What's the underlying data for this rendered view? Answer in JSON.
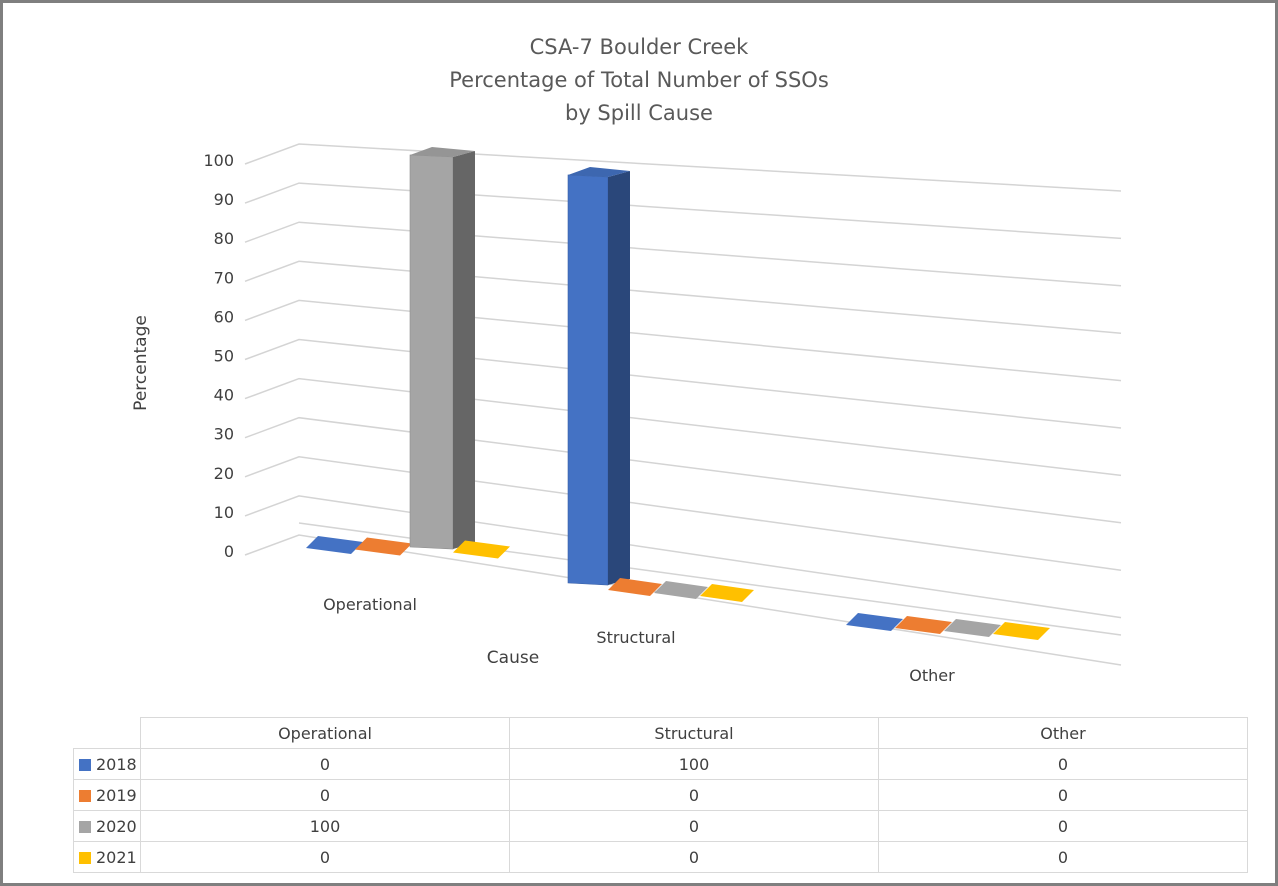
{
  "chart_data": {
    "type": "bar",
    "subtype": "3d-column",
    "title": [
      "CSA-7 Boulder Creek",
      "Percentage of Total Number of SSOs",
      "by Spill Cause"
    ],
    "categories": [
      "Operational",
      "Structural",
      "Other"
    ],
    "xlabel": "Cause",
    "ylabel": "Percentage",
    "ylim": [
      0,
      100
    ],
    "yticks": [
      0,
      10,
      20,
      30,
      40,
      50,
      60,
      70,
      80,
      90,
      100
    ],
    "grid": true,
    "legend": "data-table-bottom",
    "series": [
      {
        "name": "2018",
        "color": "#4472c4",
        "values": [
          0,
          100,
          0
        ]
      },
      {
        "name": "2019",
        "color": "#ed7d31",
        "values": [
          0,
          0,
          0
        ]
      },
      {
        "name": "2020",
        "color": "#a5a5a5",
        "values": [
          100,
          0,
          0
        ]
      },
      {
        "name": "2021",
        "color": "#ffc000",
        "values": [
          0,
          0,
          0
        ]
      }
    ]
  }
}
